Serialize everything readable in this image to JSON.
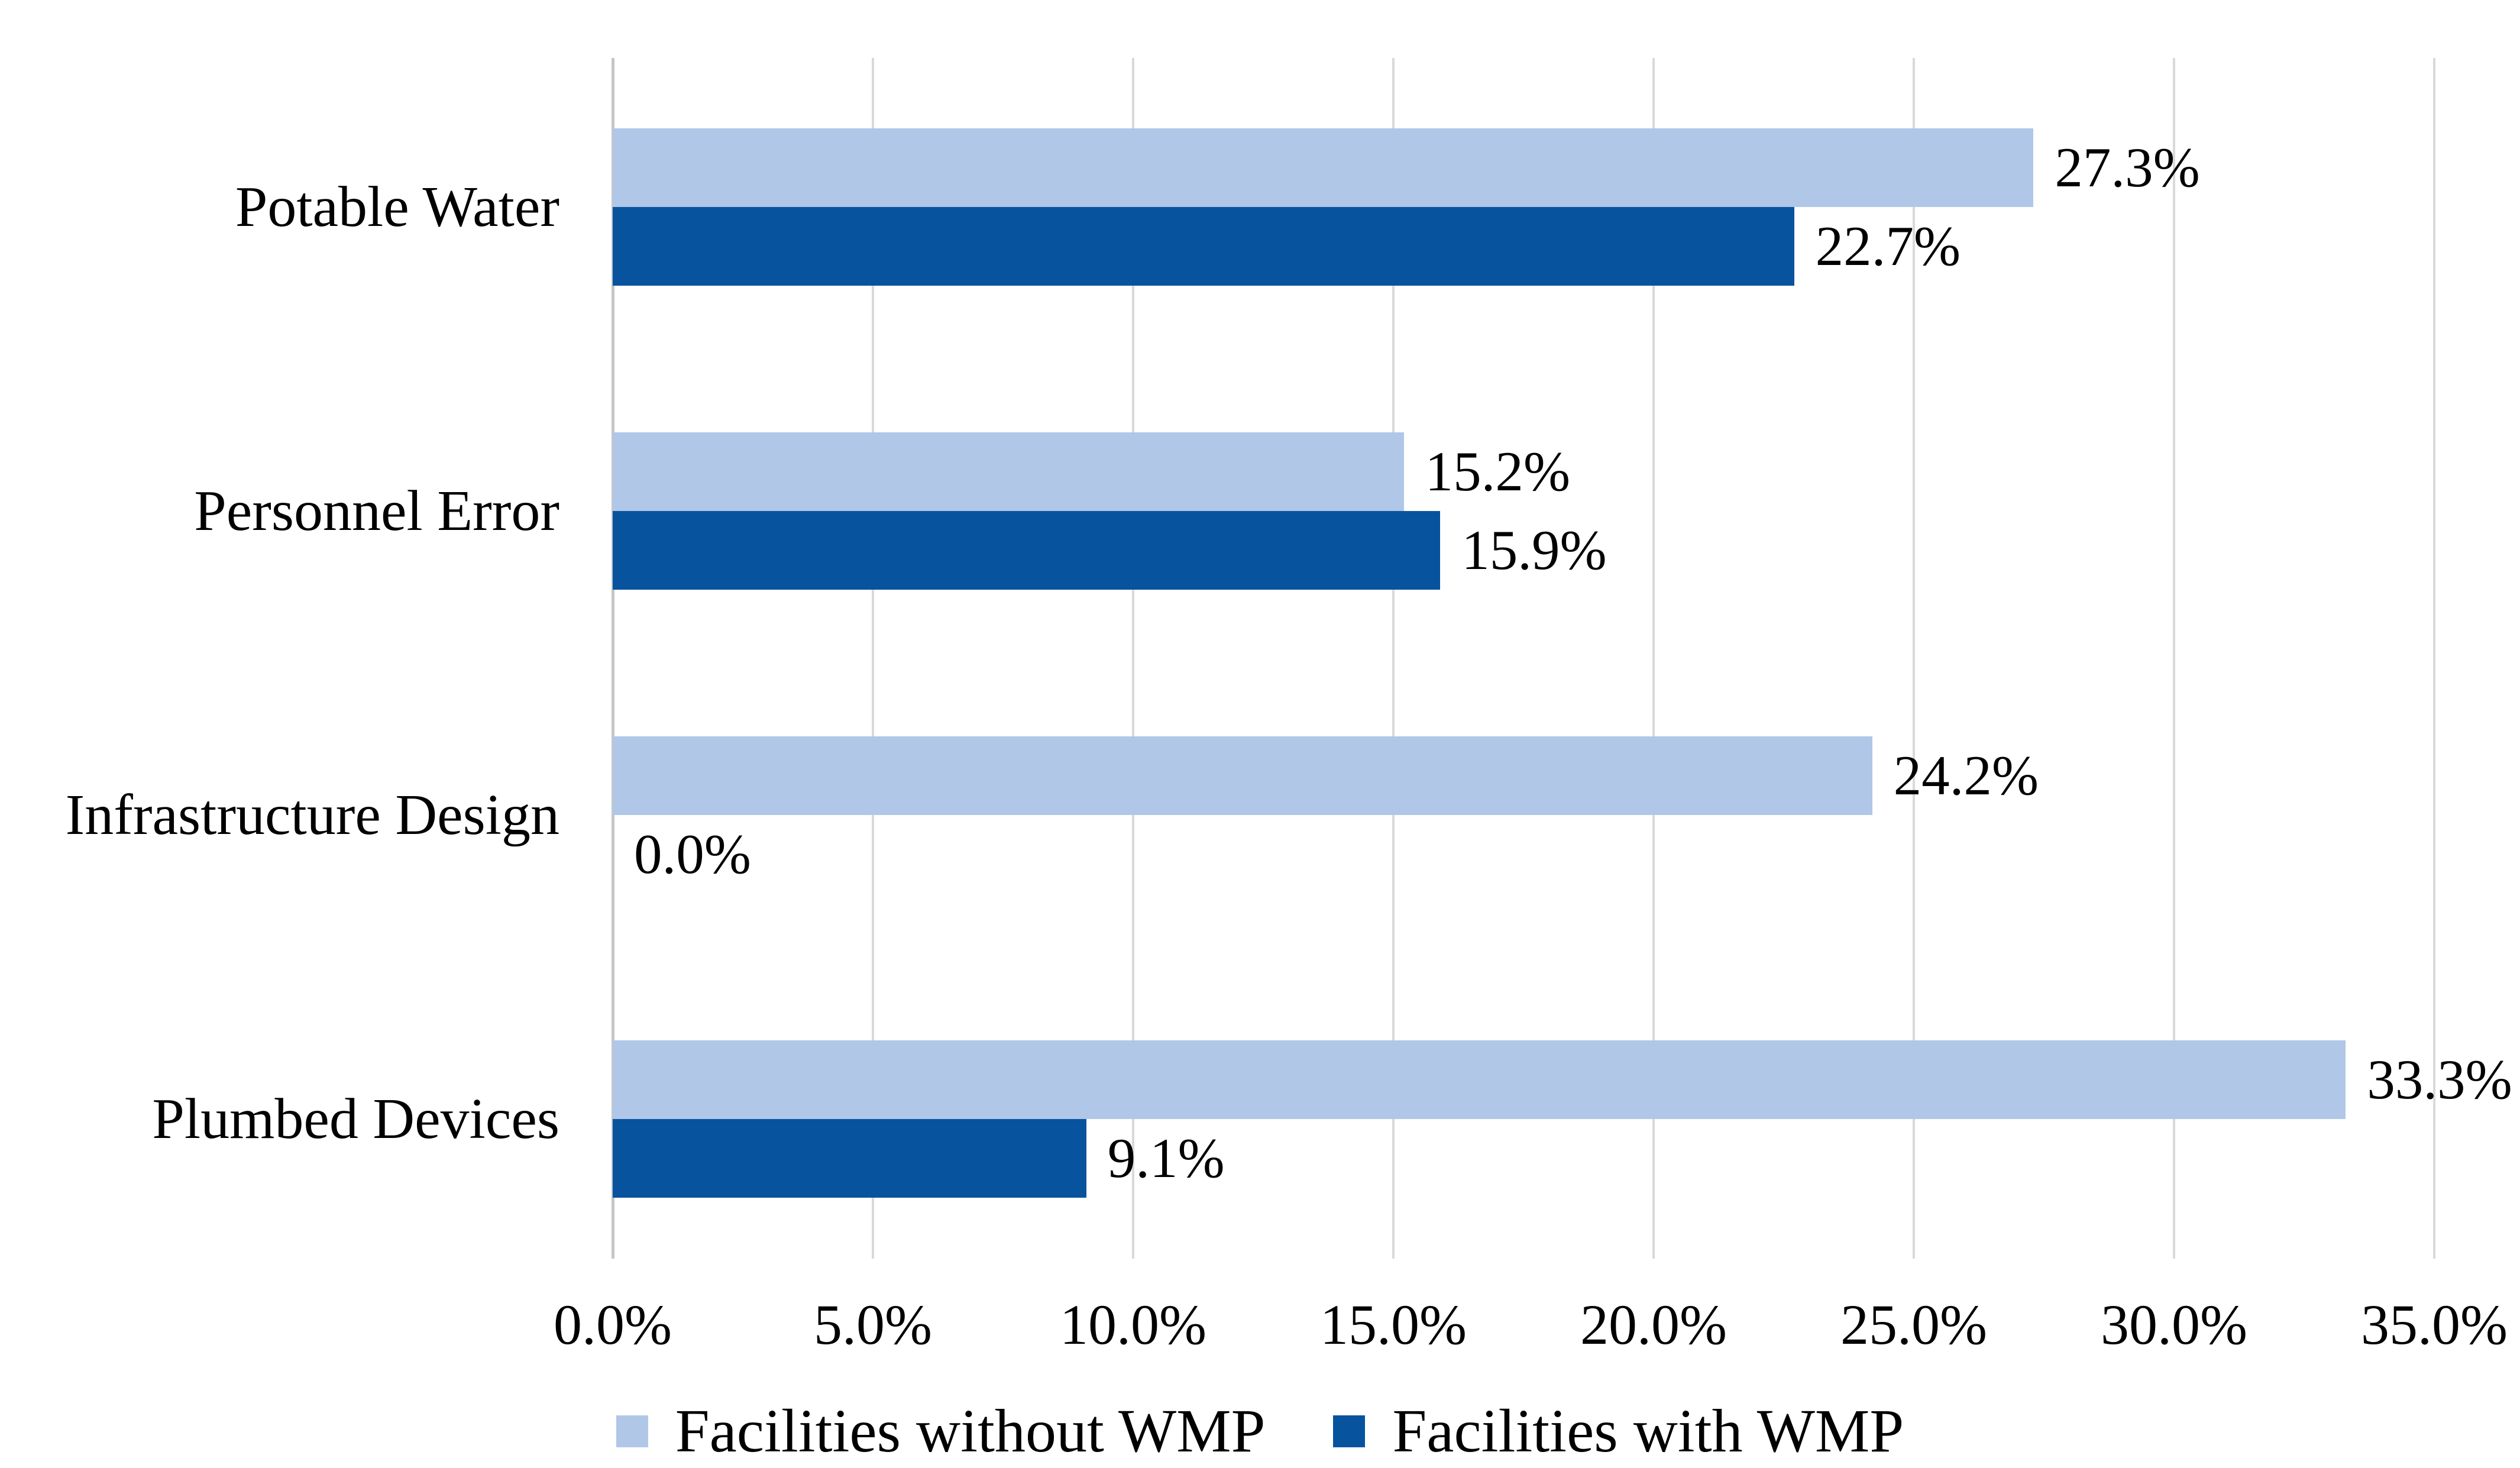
{
  "chart_data": {
    "type": "bar",
    "orientation": "horizontal",
    "title": "",
    "categories": [
      "Potable Water",
      "Personnel Error",
      "Infrastructure Design",
      "Plumbed Devices"
    ],
    "series": [
      {
        "name": "Facilities without WMP",
        "color": "#B0C7E8",
        "values": [
          27.3,
          15.2,
          24.2,
          33.3
        ],
        "labels": [
          "27.3%",
          "15.2%",
          "24.2%",
          "33.3%"
        ]
      },
      {
        "name": "Facilities with WMP",
        "color": "#07539E",
        "values": [
          22.7,
          15.9,
          0.0,
          9.1
        ],
        "labels": [
          "22.7%",
          "15.9%",
          "0.0%",
          "9.1%"
        ]
      }
    ],
    "x_axis": {
      "min": 0,
      "max": 35,
      "tick_step": 5,
      "tick_labels": [
        "0.0%",
        "5.0%",
        "10.0%",
        "15.0%",
        "20.0%",
        "25.0%",
        "30.0%",
        "35.0%"
      ]
    },
    "y_axis": {
      "label": ""
    },
    "legend": {
      "position": "bottom",
      "entries": [
        "Facilities without WMP",
        "Facilities with WMP"
      ]
    },
    "grid": true,
    "gridline_color": "#D9D9D9",
    "axis_line_color": "#C6C6C6",
    "value_label_position": "outside-end",
    "text_color": "#000000",
    "background_color": "#FFFFFF"
  }
}
